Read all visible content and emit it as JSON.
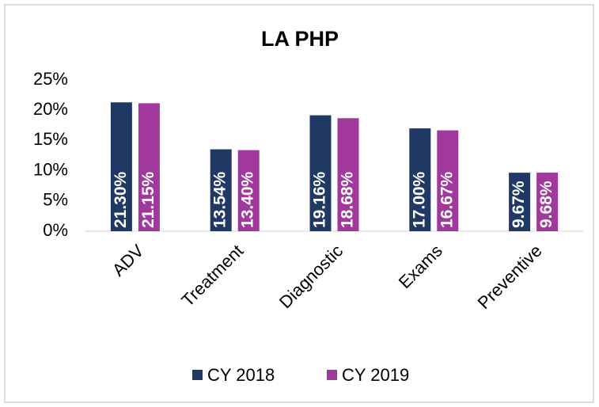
{
  "chart_data": {
    "type": "bar",
    "title": "LA PHP",
    "categories": [
      "ADV",
      "Treatment",
      "Diagnostic",
      "Exams",
      "Preventive"
    ],
    "series": [
      {
        "name": "CY 2018",
        "color": "#1f3864",
        "values": [
          21.3,
          13.54,
          19.16,
          17.0,
          9.67
        ],
        "value_labels": [
          "21.30%",
          "13.54%",
          "19.16%",
          "17.00%",
          "9.67%"
        ]
      },
      {
        "name": "CY 2019",
        "color": "#a0399b",
        "values": [
          21.15,
          13.4,
          18.68,
          16.67,
          9.68
        ],
        "value_labels": [
          "21.15%",
          "13.40%",
          "18.68%",
          "16.67%",
          "9.68%"
        ]
      }
    ],
    "ylim": [
      0,
      25
    ],
    "yticks": [
      {
        "value": 0,
        "label": "0%"
      },
      {
        "value": 5,
        "label": "5%"
      },
      {
        "value": 10,
        "label": "10%"
      },
      {
        "value": 15,
        "label": "15%"
      },
      {
        "value": 20,
        "label": "20%"
      },
      {
        "value": 25,
        "label": "25%"
      }
    ],
    "grid": false,
    "legend": "bottom"
  }
}
